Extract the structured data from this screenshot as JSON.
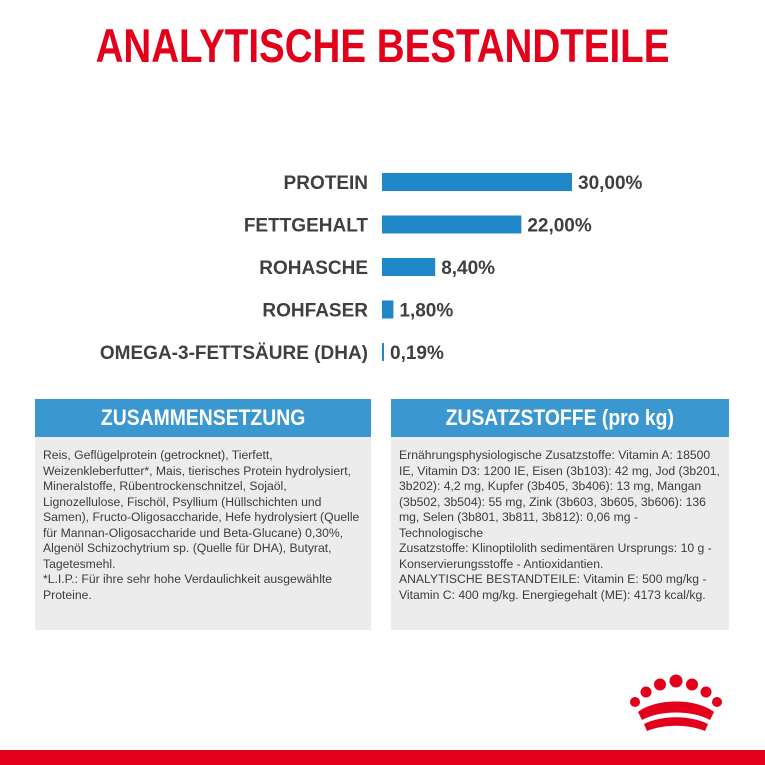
{
  "title": "ANALYTISCHE BESTANDTEILE",
  "colors": {
    "accent_red": "#e2001a",
    "bar_blue": "#1f87c7",
    "panel_blue": "#3a97d0",
    "panel_bg": "#ececec",
    "label_gray": "#3f3f3f"
  },
  "chart_data": {
    "type": "bar",
    "orientation": "horizontal",
    "categories": [
      "PROTEIN",
      "FETTGEHALT",
      "ROHASCHE",
      "ROHFASER",
      "OMEGA-3-FETTSÄURE (DHA)"
    ],
    "values": [
      30.0,
      22.0,
      8.4,
      1.8,
      0.19
    ],
    "value_labels": [
      "30,00%",
      "22,00%",
      "8,40%",
      "1,80%",
      "0,19%"
    ],
    "unit": "%",
    "xlim": [
      0,
      30
    ]
  },
  "panels": {
    "left": {
      "heading": "ZUSAMMENSETZUNG",
      "text": "Reis, Geflügelprotein (getrocknet), Tierfett,\nWeizenkleberfutter*, Mais, tierisches Protein hydrolysiert,\nMineralstoffe, Rübentrockenschnitzel, Sojaöl,\nLignozellulose, Fischöl, Psyllium (Hüllschichten und\nSamen), Fructo-Oligosaccharide, Hefe hydrolysiert (Quelle\nfür Mannan-Oligosaccharide und Beta-Glucane) 0,30%,\nAlgenöl Schizochytrium sp. (Quelle für DHA), Butyrat,\nTagetesmehl.\n*L.I.P.: Für ihre sehr hohe Verdaulichkeit ausgewählte\nProteine."
    },
    "right": {
      "heading": "ZUSATZSTOFFE (pro kg)",
      "text": "Ernährungsphysiologische Zusatzstoffe: Vitamin A: 18500\nIE, Vitamin D3: 1200 IE, Eisen (3b103): 42 mg, Jod (3b201,\n3b202): 4,2 mg, Kupfer (3b405, 3b406): 13 mg, Mangan\n(3b502, 3b504): 55 mg, Zink (3b603, 3b605, 3b606): 136\nmg, Selen (3b801, 3b811, 3b812): 0,06 mg - Technologische\nZusatzstoffe: Klinoptilolith sedimentären Ursprungs: 10 g -\nKonservierungsstoffe - Antioxidantien.\nANALYTISCHE BESTANDTEILE: Vitamin E: 500 mg/kg -\nVitamin C: 400 mg/kg. Energiegehalt (ME): 4173 kcal/kg."
    }
  },
  "logo": {
    "icon": "crown-logo-icon"
  }
}
